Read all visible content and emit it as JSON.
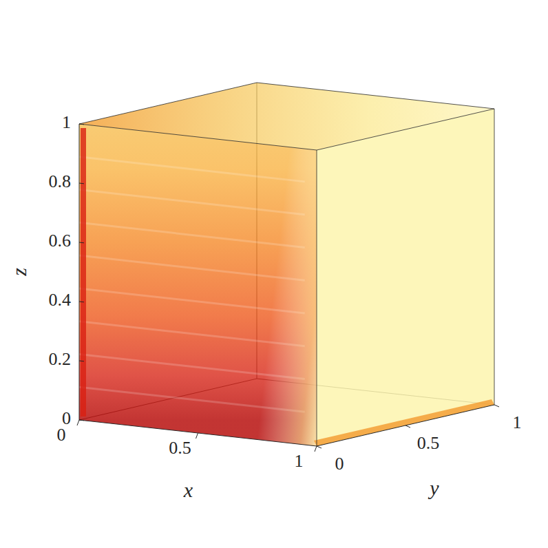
{
  "chart_data": {
    "type": "isosurface3d",
    "x_label": "x",
    "y_label": "y",
    "z_label": "z",
    "xlim": [
      0,
      1
    ],
    "ylim": [
      0,
      1
    ],
    "zlim": [
      0,
      1
    ],
    "xticks": [
      0,
      0.5,
      1
    ],
    "yticks": [
      0,
      0.5,
      1
    ],
    "zticks": [
      0,
      0.2,
      0.4,
      0.6,
      0.8,
      1
    ]
  }
}
